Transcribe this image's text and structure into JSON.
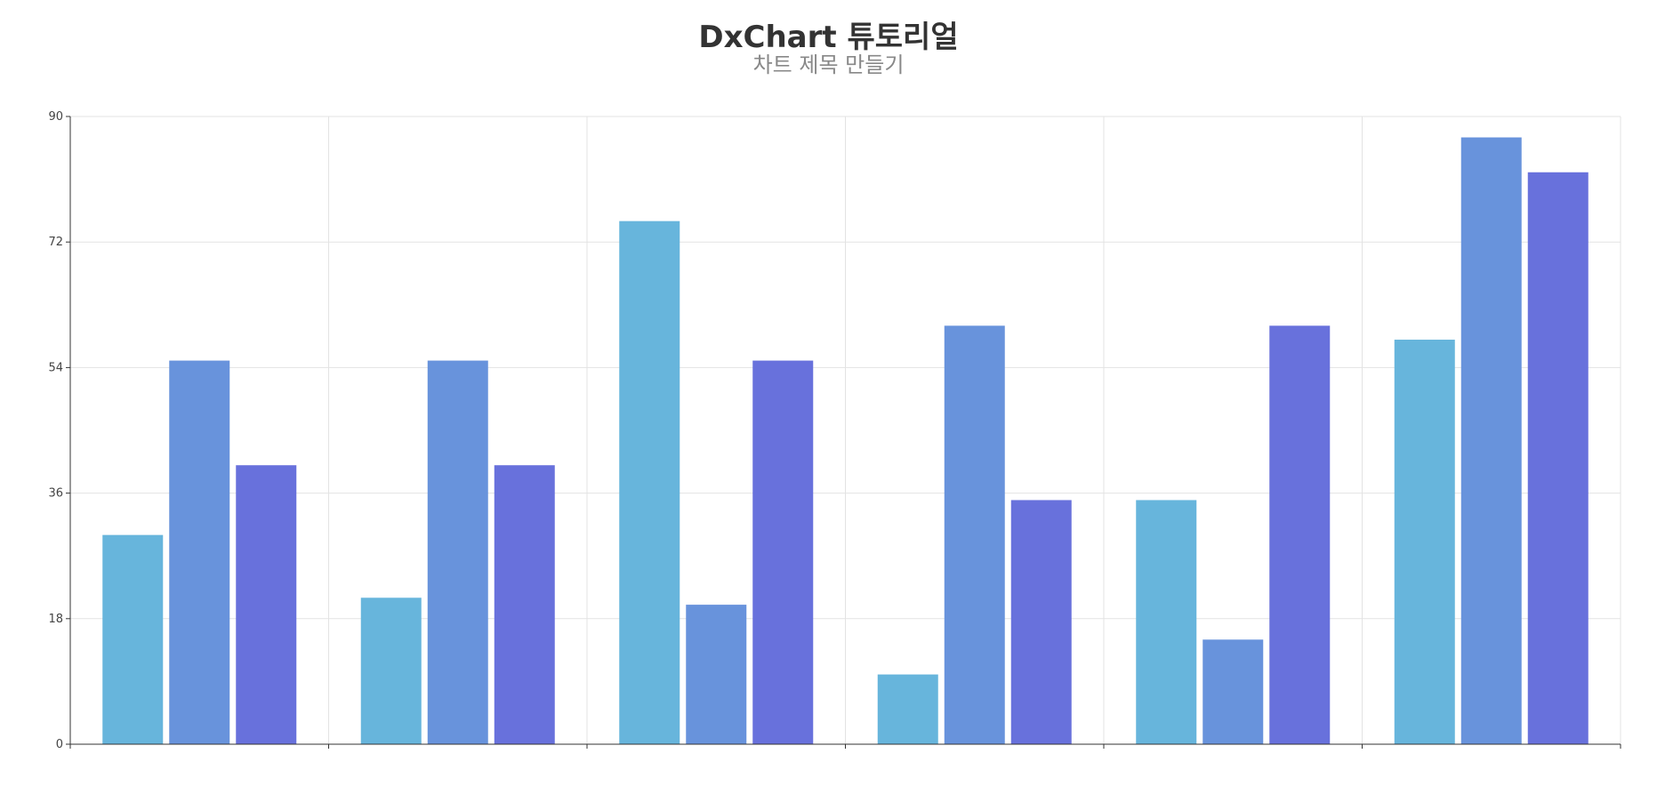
{
  "chart_data": {
    "type": "bar",
    "title": "DxChart 튜토리얼",
    "subtitle": "차트 제목 만들기",
    "xlabel": "",
    "ylabel": "",
    "categories": [
      "",
      "",
      "",
      "",
      "",
      ""
    ],
    "ylim": [
      0,
      90
    ],
    "yticks": [
      "0",
      "18",
      "36",
      "54",
      "72",
      "90"
    ],
    "grid": true,
    "series": [
      {
        "color": "#67b5dc",
        "values": [
          30,
          21,
          75,
          10,
          35,
          58
        ]
      },
      {
        "color": "#6893dc",
        "values": [
          55,
          55,
          20,
          60,
          15,
          87
        ]
      },
      {
        "color": "#6871dc",
        "values": [
          40,
          40,
          55,
          35,
          60,
          82
        ]
      }
    ]
  }
}
